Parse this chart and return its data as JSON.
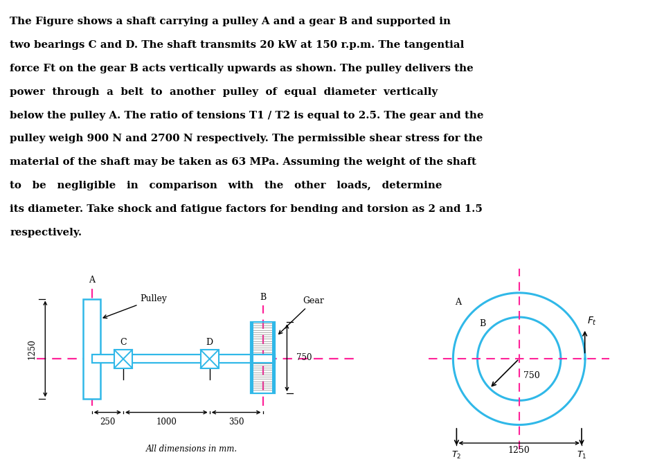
{
  "bg_color": "#ffffff",
  "shaft_color": "#30b8e8",
  "dashed_color": "#ff2299",
  "text_color": "#000000",
  "dim_color": "#000000",
  "text_lines": [
    "The Figure shows a shaft carrying a pulley A and a gear B and supported in",
    "two bearings C and D. The shaft transmits 20 kW at 150 r.p.m. The tangential",
    "force Ft on the gear B acts vertically upwards as shown. The pulley delivers the",
    "power  through  a  belt  to  another  pulley  of  equal  diameter  vertically",
    "below the pulley A. The ratio of tensions T1 / T2 is equal to 2.5. The gear and the",
    "pulley weigh 900 N and 2700 N respectively. The permissible shear stress for the",
    "material of the shaft may be taken as 63 MPa. Assuming the weight of the shaft",
    "to   be   negligible   in   comparison   with   the   other   loads,   determine",
    "its diameter. Take shock and fatigue factors for bending and torsion as 2 and 1.5",
    "respectively."
  ],
  "fig_width": 9.46,
  "fig_height": 6.73,
  "fig_dpi": 100
}
